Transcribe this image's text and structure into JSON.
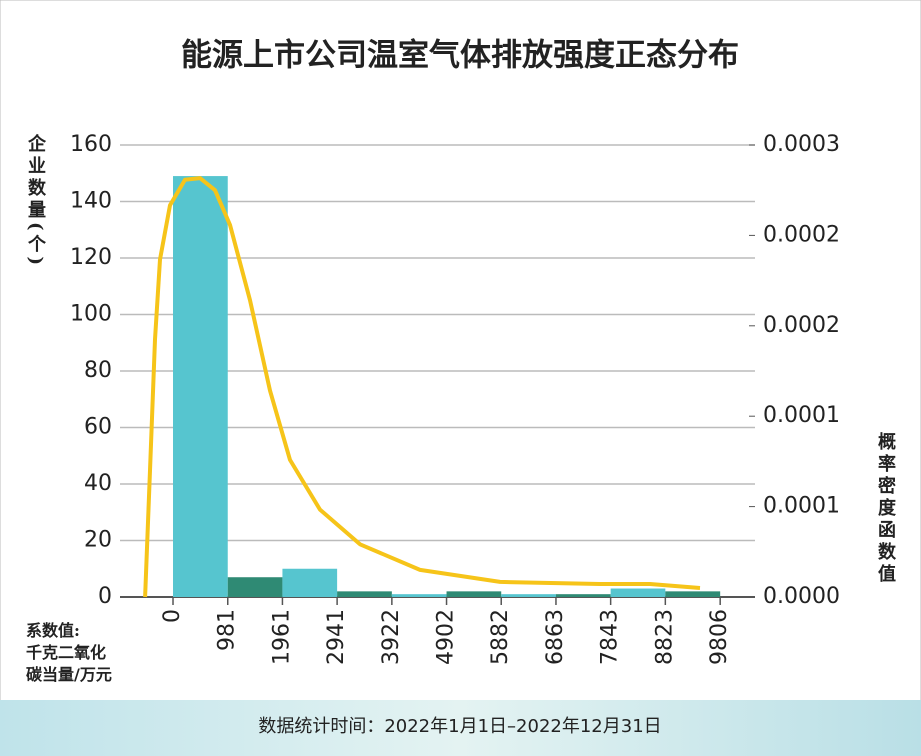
{
  "chart_data": {
    "type": "histogram",
    "title": "能源上市公司温室气体排放强度正态分布",
    "ylabel": "企业数量(个)",
    "y2label": "概率密度函数值",
    "xlabel": [
      "系数值:",
      "千克二氧化",
      "碳当量/万元"
    ],
    "footnote": "数据统计时间：2022年1月1日–2022年12月31日",
    "bins": [
      0,
      981,
      1961,
      2941,
      3922,
      4902,
      5882,
      6863,
      7843,
      8823,
      9806
    ],
    "values": [
      149,
      7,
      10,
      2,
      1,
      2,
      1,
      1,
      3,
      2
    ],
    "colors": [
      "#56c5cf",
      "#2f8a74",
      "#56c5cf",
      "#2f8a74",
      "#56c5cf",
      "#2f8a74",
      "#56c5cf",
      "#2f8a74",
      "#56c5cf",
      "#2f8a74"
    ],
    "xlim": [
      -950,
      10430
    ],
    "ylim": [
      0,
      160
    ],
    "yticks": [
      0,
      20,
      40,
      60,
      80,
      100,
      120,
      140,
      160
    ],
    "y2lim": [
      0,
      0.0003
    ],
    "y2ticks": [
      {
        "value": 0,
        "label": "0.0000"
      },
      {
        "value": 6e-05,
        "label": "0.0001"
      },
      {
        "value": 0.00012,
        "label": "0.0001"
      },
      {
        "value": 0.00018,
        "label": "0.0002"
      },
      {
        "value": 0.00024,
        "label": "0.0002"
      },
      {
        "value": 0.0003,
        "label": "0.0003"
      }
    ],
    "grid": true,
    "density": {
      "axis": "y2",
      "color": "#f6c419",
      "x": [
        -500,
        -412,
        -323,
        -233,
        -54,
        215,
        484,
        753,
        1022,
        1380,
        1738,
        2097,
        2634,
        3351,
        4427,
        5860,
        7652,
        8548,
        9444
      ],
      "values": [
        0,
        8.4e-05,
        0.000171,
        0.000224,
        0.00026,
        0.000277,
        0.000278,
        0.00027,
        0.000247,
        0.000197,
        0.000137,
        9.1e-05,
        5.8e-05,
        3.5e-05,
        1.8e-05,
        1e-05,
        8.6e-06,
        8.6e-06,
        6e-06
      ]
    }
  }
}
